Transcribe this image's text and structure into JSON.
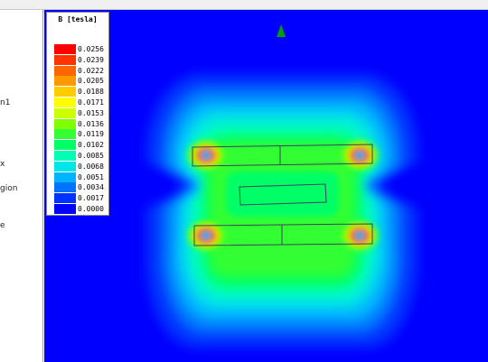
{
  "tree": {
    "items": [
      {
        "label": "n1"
      },
      {
        "label": "x"
      },
      {
        "label": "gion"
      },
      {
        "label": "e"
      }
    ]
  },
  "legend": {
    "title": "B [tesla]",
    "entries": [
      {
        "value": "0.0256",
        "color": "#ff0000"
      },
      {
        "value": "0.0239",
        "color": "#ff3300"
      },
      {
        "value": "0.0222",
        "color": "#ff6600"
      },
      {
        "value": "0.0205",
        "color": "#ff9900"
      },
      {
        "value": "0.0188",
        "color": "#ffcc00"
      },
      {
        "value": "0.0171",
        "color": "#ffff00"
      },
      {
        "value": "0.0153",
        "color": "#ccff00"
      },
      {
        "value": "0.0136",
        "color": "#80ff00"
      },
      {
        "value": "0.0119",
        "color": "#33ff33"
      },
      {
        "value": "0.0102",
        "color": "#00ff66"
      },
      {
        "value": "0.0085",
        "color": "#00ffb3"
      },
      {
        "value": "0.0068",
        "color": "#00e6e6"
      },
      {
        "value": "0.0051",
        "color": "#00b3ff"
      },
      {
        "value": "0.0034",
        "color": "#0073ff"
      },
      {
        "value": "0.0017",
        "color": "#0033ff"
      },
      {
        "value": "0.0000",
        "color": "#0000ff"
      }
    ]
  },
  "field_plot": {
    "background_color": "#0000ff",
    "marker_color": "#00a000",
    "marker_icon": "triangle-marker-icon"
  }
}
